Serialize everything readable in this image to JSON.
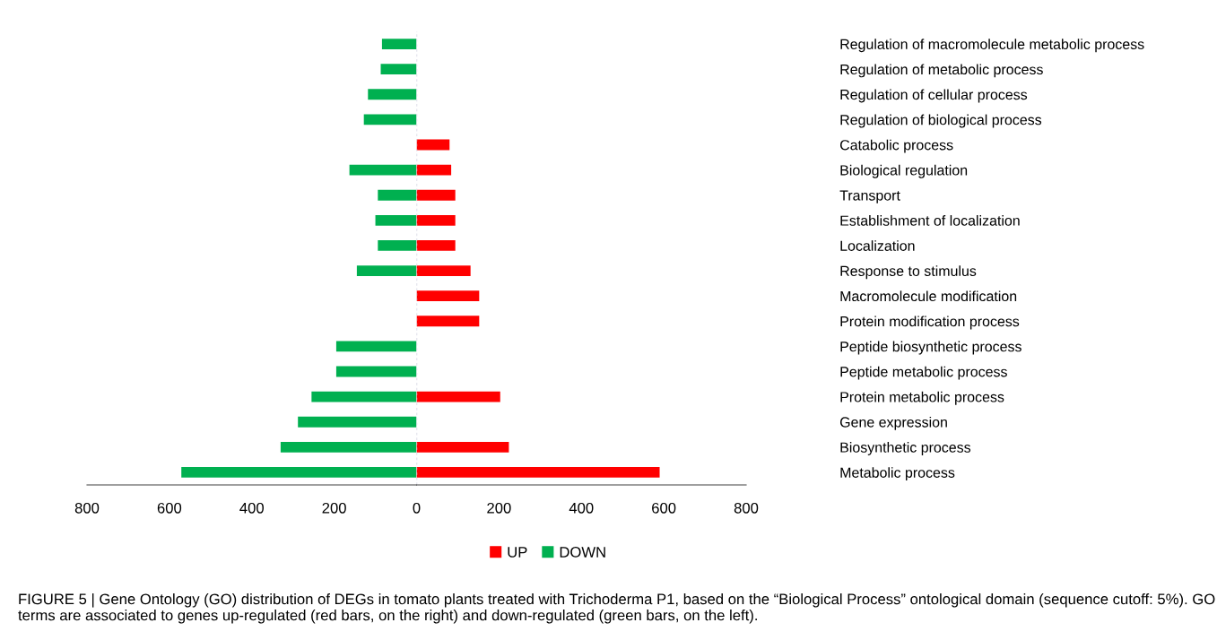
{
  "chart_data": [
    {
      "type": "bar",
      "orientation": "horizontal",
      "categories": [
        null,
        null,
        null,
        null,
        null,
        null,
        null,
        null,
        null,
        null,
        null,
        null,
        null,
        null,
        null,
        null,
        null,
        null
      ],
      "series": [
        {
          "name": "DOWN",
          "color": "#00b050",
          "values": [
            84,
            87,
            118,
            128,
            null,
            163,
            94,
            100,
            94,
            145,
            null,
            null,
            195,
            195,
            255,
            288,
            330,
            571
          ]
        }
      ],
      "xlim": [
        800,
        0
      ],
      "xticks": [
        800,
        600,
        400,
        200
      ],
      "tick_labels": "x",
      "grid": false,
      "legend": "bottom"
    },
    {
      "type": "bar",
      "orientation": "horizontal",
      "categories": [
        "Regulation of macromolecule metabolic process",
        "Regulation of metabolic process",
        "Regulation of cellular process",
        "Regulation of biological process",
        "Catabolic process",
        "Biological regulation",
        "Transport",
        "Establishment of localization",
        "Localization",
        "Response to stimulus",
        "Macromolecule modification",
        "Protein modification process",
        "Peptide biosynthetic process",
        "Peptide metabolic process",
        "Protein metabolic process",
        "Gene expression",
        "Biosynthetic process",
        "Metabolic process"
      ],
      "series": [
        {
          "name": "UP",
          "color": "#ff0000",
          "values": [
            null,
            null,
            null,
            null,
            80,
            84,
            94,
            94,
            94,
            131,
            152,
            152,
            null,
            null,
            203,
            null,
            224,
            590
          ]
        }
      ],
      "xlim": [
        0,
        800
      ],
      "xticks": [
        0,
        200,
        400,
        600,
        800
      ],
      "grid": false,
      "legend": "bottom",
      "annotations": [
        "FIGURE 5 | Gene Ontology (GO) distribution of DEGs in tomato plants treated with Trichoderma P1, based on the “Biological Process” ontological domain (sequence cutoff: 5%). GO terms are associated to genes up-regulated (red bars, on the right) and down-regulated (green bars, on the left)."
      ]
    }
  ]
}
